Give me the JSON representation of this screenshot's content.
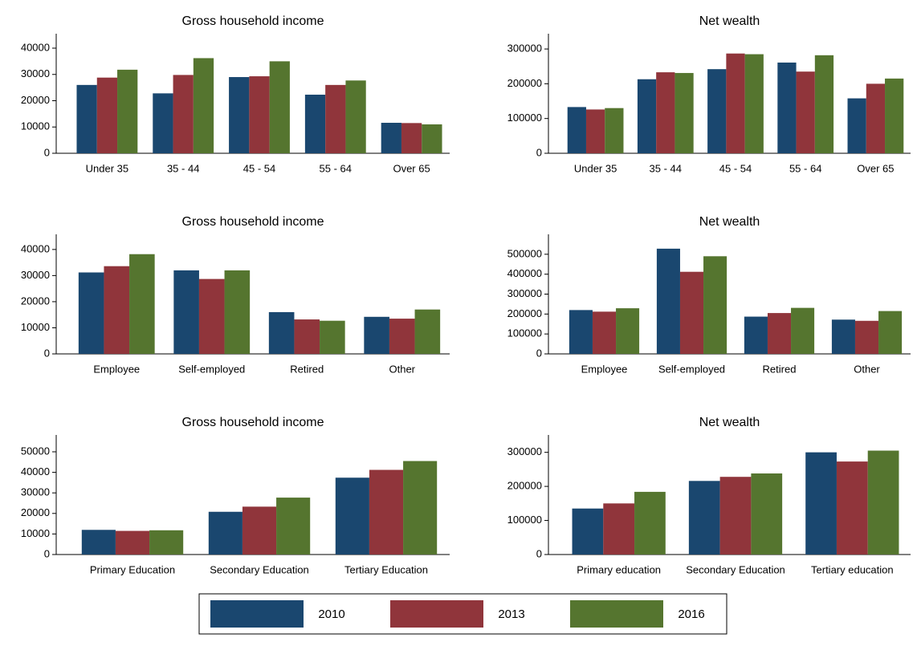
{
  "chart_data": [
    {
      "type": "bar",
      "title": "Gross household income",
      "categories": [
        "Under 35",
        "35 - 44",
        "45 - 54",
        "55 - 64",
        "Over 65"
      ],
      "series": [
        {
          "name": "2010",
          "color": "#1a476f",
          "values": [
            26000,
            22800,
            29000,
            22300,
            11600
          ]
        },
        {
          "name": "2013",
          "color": "#90353b",
          "values": [
            28800,
            29800,
            29300,
            26000,
            11500
          ]
        },
        {
          "name": "2016",
          "color": "#55752f",
          "values": [
            31800,
            36200,
            35000,
            27700,
            11000
          ]
        }
      ],
      "ylim": [
        0,
        45500
      ],
      "yticks": [
        0,
        10000,
        20000,
        30000,
        40000
      ]
    },
    {
      "type": "bar",
      "title": "Net wealth",
      "categories": [
        "Under 35",
        "35 - 44",
        "45 - 54",
        "55 - 64",
        "Over 65"
      ],
      "series": [
        {
          "name": "2010",
          "color": "#1a476f",
          "values": [
            133000,
            213000,
            242000,
            261000,
            158000
          ]
        },
        {
          "name": "2013",
          "color": "#90353b",
          "values": [
            126000,
            233000,
            287000,
            235000,
            200000
          ]
        },
        {
          "name": "2016",
          "color": "#55752f",
          "values": [
            130000,
            231000,
            285000,
            282000,
            215000
          ]
        }
      ],
      "ylim": [
        0,
        344000
      ],
      "yticks": [
        0,
        100000,
        200000,
        300000
      ]
    },
    {
      "type": "bar",
      "title": "Gross household income",
      "categories": [
        "Employee",
        "Self-employed",
        "Retired",
        "Other"
      ],
      "series": [
        {
          "name": "2010",
          "color": "#1a476f",
          "values": [
            31200,
            32000,
            16000,
            14200
          ]
        },
        {
          "name": "2013",
          "color": "#90353b",
          "values": [
            33600,
            28700,
            13200,
            13500
          ]
        },
        {
          "name": "2016",
          "color": "#55752f",
          "values": [
            38200,
            32000,
            12700,
            17000
          ]
        }
      ],
      "ylim": [
        0,
        45800
      ],
      "yticks": [
        0,
        10000,
        20000,
        30000,
        40000
      ]
    },
    {
      "type": "bar",
      "title": "Net wealth",
      "categories": [
        "Employee",
        "Self-employed",
        "Retired",
        "Other"
      ],
      "series": [
        {
          "name": "2010",
          "color": "#1a476f",
          "values": [
            220000,
            528000,
            187000,
            172000
          ]
        },
        {
          "name": "2013",
          "color": "#90353b",
          "values": [
            212000,
            412000,
            205000,
            166000
          ]
        },
        {
          "name": "2016",
          "color": "#55752f",
          "values": [
            229000,
            490000,
            231000,
            215000
          ]
        }
      ],
      "ylim": [
        0,
        600000
      ],
      "yticks": [
        0,
        100000,
        200000,
        300000,
        400000,
        500000
      ]
    },
    {
      "type": "bar",
      "title": "Gross household income",
      "categories": [
        "Primary Education",
        "Secondary Education",
        "Tertiary Education"
      ],
      "series": [
        {
          "name": "2010",
          "color": "#1a476f",
          "values": [
            12000,
            20800,
            37400
          ]
        },
        {
          "name": "2013",
          "color": "#90353b",
          "values": [
            11500,
            23300,
            41200
          ]
        },
        {
          "name": "2016",
          "color": "#55752f",
          "values": [
            11800,
            27700,
            45500
          ]
        }
      ],
      "ylim": [
        0,
        58200
      ],
      "yticks": [
        0,
        10000,
        20000,
        30000,
        40000,
        50000
      ]
    },
    {
      "type": "bar",
      "title": "Net wealth",
      "categories": [
        "Primary education",
        "Secondary Education",
        "Tertiary education"
      ],
      "series": [
        {
          "name": "2010",
          "color": "#1a476f",
          "values": [
            135000,
            216000,
            300000
          ]
        },
        {
          "name": "2013",
          "color": "#90353b",
          "values": [
            150000,
            228000,
            273000
          ]
        },
        {
          "name": "2016",
          "color": "#55752f",
          "values": [
            184000,
            238000,
            305000
          ]
        }
      ],
      "ylim": [
        0,
        351000
      ],
      "yticks": [
        0,
        100000,
        200000,
        300000
      ]
    }
  ]
}
